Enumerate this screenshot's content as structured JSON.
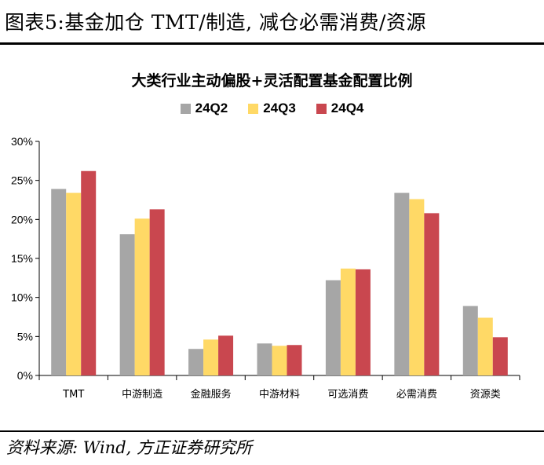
{
  "figure_title": "图表5:基金加仓 TMT/制造, 减仓必需消费/资源",
  "source_note": "资料来源: Wind, 方正证券研究所",
  "chart_data": {
    "type": "bar",
    "title": "大类行业主动偏股+灵活配置基金配置比例",
    "categories": [
      "TMT",
      "中游制造",
      "金融服务",
      "中游材料",
      "可选消费",
      "必需消费",
      "资源类"
    ],
    "series": [
      {
        "name": "24Q2",
        "color": "#a6a6a6",
        "values": [
          23.9,
          18.1,
          3.4,
          4.1,
          12.2,
          23.4,
          8.9
        ]
      },
      {
        "name": "24Q3",
        "color": "#ffd966",
        "values": [
          23.4,
          20.1,
          4.6,
          3.8,
          13.7,
          22.6,
          7.4
        ]
      },
      {
        "name": "24Q4",
        "color": "#c9474f",
        "values": [
          26.2,
          21.3,
          5.1,
          3.9,
          13.6,
          20.8,
          4.9
        ]
      }
    ],
    "ylim": [
      0,
      30
    ],
    "yticks": [
      0,
      5,
      10,
      15,
      20,
      25,
      30
    ],
    "ytick_labels": [
      "0%",
      "5%",
      "10%",
      "15%",
      "20%",
      "25%",
      "30%"
    ],
    "legend_position": "top-center",
    "grid": false
  }
}
